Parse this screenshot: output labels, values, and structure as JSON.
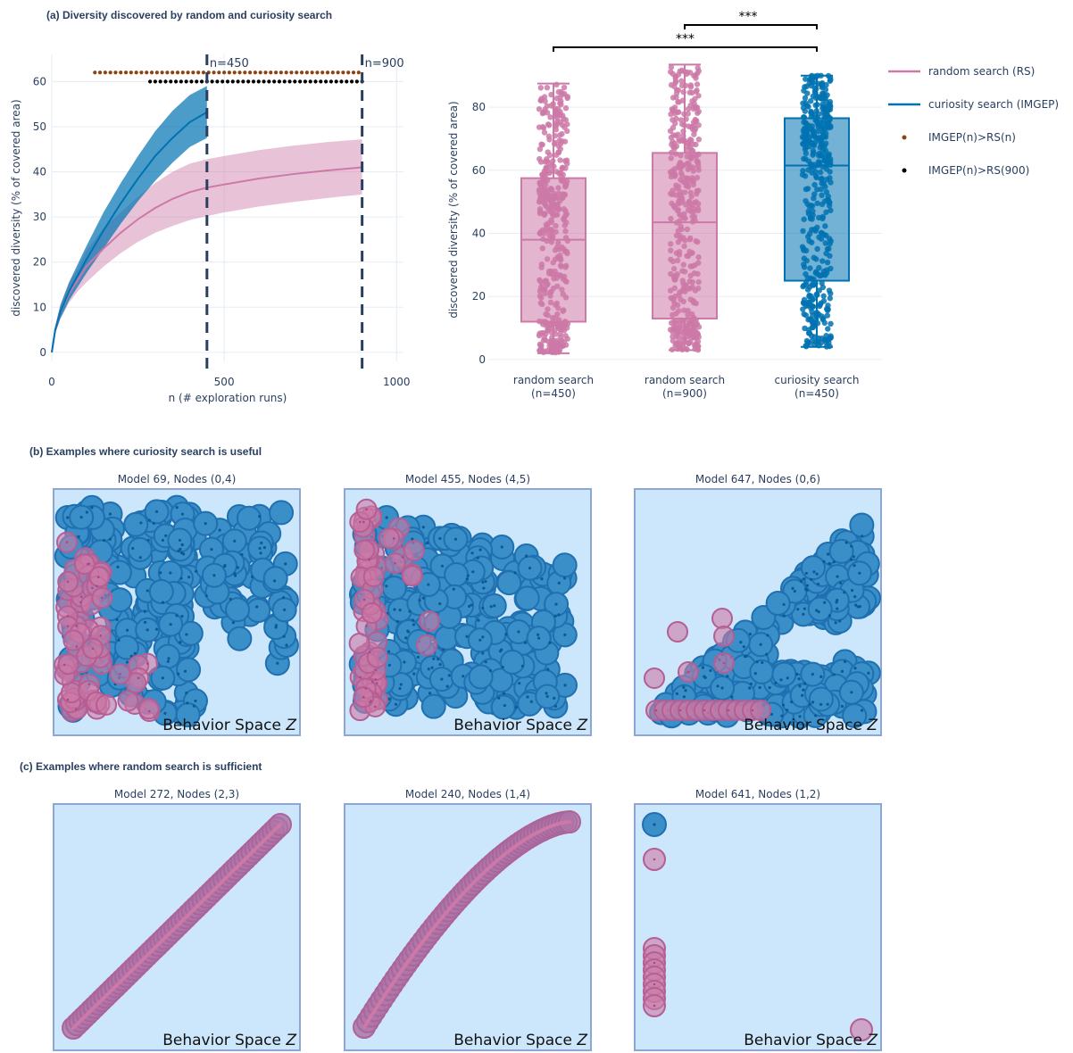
{
  "section_titles": {
    "a": "(a) Diversity discovered by random and curiosity search",
    "b": "(b) Examples where curiosity search is useful",
    "c": "(c) Examples where random search is sufficient"
  },
  "colors": {
    "random": "#cc79a7",
    "random_fill": "#cc79a7",
    "curiosity": "#0072b2",
    "curiosity_fill": "#3a8fc8",
    "brown_dots": "#8b4513",
    "black_dots": "#000000",
    "panel_bg": "#cce6fb",
    "panel_border": "#8ea6d2",
    "grid": "#e5ecf6",
    "dash": "#2a3f5f"
  },
  "legend": [
    {
      "label": "random search (RS)",
      "kind": "line",
      "color_key": "random"
    },
    {
      "label": "curiosity search (IMGEP)",
      "kind": "line",
      "color_key": "curiosity"
    },
    {
      "label": "IMGEP(n)>RS(n)",
      "kind": "dot",
      "color_key": "brown_dots"
    },
    {
      "label": "IMGEP(n)>RS(900)",
      "kind": "dot",
      "color_key": "black_dots"
    }
  ],
  "chart_data": [
    {
      "type": "line",
      "xlabel": "n (# exploration runs)",
      "ylabel": "discovered diversity (% of covered area)",
      "xlim": [
        0,
        1020
      ],
      "ylim": [
        -2,
        66
      ],
      "xticks": [
        0,
        500,
        1000
      ],
      "yticks": [
        0,
        10,
        20,
        30,
        40,
        50,
        60
      ],
      "grid": true,
      "series": [
        {
          "name": "random search (RS)",
          "color_key": "random",
          "x": [
            0,
            10,
            25,
            50,
            75,
            100,
            150,
            200,
            250,
            300,
            350,
            400,
            450,
            500,
            600,
            700,
            800,
            900
          ],
          "mean": [
            0,
            5,
            9,
            13,
            16,
            19,
            23,
            26.5,
            29.5,
            32,
            34,
            35.5,
            36.5,
            37.2,
            38.5,
            39.5,
            40.3,
            41
          ],
          "lower": [
            0,
            4.2,
            7.5,
            11,
            13.5,
            15.5,
            19,
            22,
            24.5,
            26.5,
            28,
            29.3,
            30.2,
            31,
            32.3,
            33.3,
            34.2,
            35
          ],
          "upper": [
            0,
            5.8,
            10.5,
            15.5,
            18.5,
            22.5,
            27.5,
            31,
            34.5,
            37.5,
            40,
            41.8,
            42.8,
            43.5,
            44.8,
            45.8,
            46.6,
            47.2
          ]
        },
        {
          "name": "curiosity search (IMGEP)",
          "color_key": "curiosity",
          "x": [
            0,
            10,
            25,
            50,
            75,
            100,
            150,
            200,
            250,
            300,
            350,
            400,
            450
          ],
          "mean": [
            0,
            5,
            9,
            13.5,
            17,
            20.5,
            27,
            33,
            38.5,
            43.5,
            47.5,
            51,
            53.2
          ],
          "lower": [
            0,
            4.2,
            7.5,
            11.5,
            14.5,
            17.5,
            23,
            28.5,
            33.5,
            38,
            42,
            45.5,
            47.5
          ],
          "upper": [
            0,
            5.8,
            10.5,
            15.5,
            19.5,
            23.5,
            31,
            37.5,
            43.5,
            49,
            53.5,
            57,
            59
          ]
        }
      ],
      "vlines": [
        {
          "x": 450,
          "label": "n=450"
        },
        {
          "x": 900,
          "label": "n=900"
        }
      ],
      "significance_dots": [
        {
          "name": "IMGEP(n)>RS(n)",
          "color_key": "brown_dots",
          "y": 62,
          "x_from": 125,
          "x_to": 900,
          "step": 15
        },
        {
          "name": "IMGEP(n)>RS(900)",
          "color_key": "black_dots",
          "y": 60,
          "x_from": 285,
          "x_to": 900,
          "step": 15
        }
      ]
    },
    {
      "type": "box",
      "ylabel": "discovered diversity (% of covered area)",
      "ylim": [
        -2,
        97
      ],
      "yticks": [
        0,
        20,
        40,
        60,
        80
      ],
      "grid": true,
      "categories": [
        "random search\n(n=450)",
        "random search\n(n=900)",
        "curiosity search\n(n=450)"
      ],
      "boxes": [
        {
          "name": "random search (n=450)",
          "color_key": "random",
          "min": 2,
          "q1": 12,
          "median": 38,
          "q3": 57.5,
          "max": 87.5
        },
        {
          "name": "random search (n=900)",
          "color_key": "random",
          "min": 3,
          "q1": 13,
          "median": 43.5,
          "q3": 65.5,
          "max": 93.5
        },
        {
          "name": "curiosity search (n=450)",
          "color_key": "curiosity",
          "min": 4,
          "q1": 25,
          "median": 61.5,
          "q3": 76.5,
          "max": 90
        }
      ],
      "brackets": [
        {
          "from": 1,
          "to": 2,
          "label": "***"
        },
        {
          "from": 0,
          "to": 2,
          "label": "***"
        }
      ]
    }
  ],
  "panels_b": [
    {
      "title": "Model 69, Nodes (0,4)",
      "label": "Behavior Space",
      "var": "Z",
      "kind": "useful1"
    },
    {
      "title": "Model 455, Nodes (4,5)",
      "label": "Behavior Space",
      "var": "Z",
      "kind": "useful2"
    },
    {
      "title": "Model 647, Nodes (0,6)",
      "label": "Behavior Space",
      "var": "Z",
      "kind": "useful3"
    }
  ],
  "panels_c": [
    {
      "title": "Model 272, Nodes (2,3)",
      "label": "Behavior Space",
      "var": "Z",
      "kind": "diag"
    },
    {
      "title": "Model 240, Nodes (1,4)",
      "label": "Behavior Space",
      "var": "Z",
      "kind": "curve"
    },
    {
      "title": "Model 641, Nodes (1,2)",
      "label": "Behavior Space",
      "var": "Z",
      "kind": "points"
    }
  ]
}
